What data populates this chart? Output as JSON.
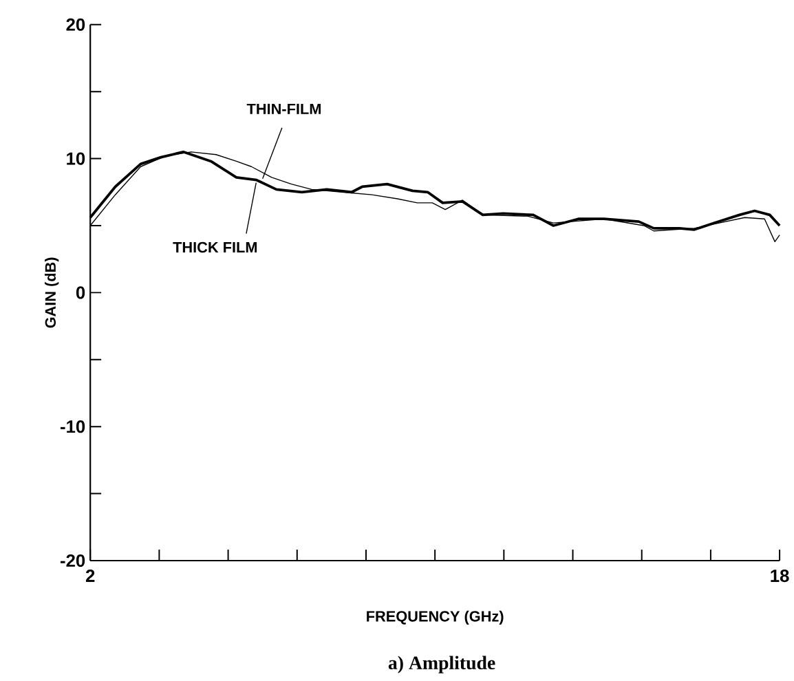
{
  "chart_data": {
    "type": "line",
    "xlabel": "FREQUENCY (GHz)",
    "ylabel": "GAIN (dB)",
    "annotations": [
      "a) Amplitude"
    ],
    "xlim": [
      2,
      18
    ],
    "ylim": [
      -20,
      20
    ],
    "xticks": [
      2,
      {
        "value": 3.6,
        "label": null
      },
      {
        "value": 5.2,
        "label": null
      },
      {
        "value": 6.8,
        "label": null
      },
      {
        "value": 8.4,
        "label": null
      },
      {
        "value": 10,
        "label": null
      },
      {
        "value": 11.6,
        "label": null
      },
      {
        "value": 13.2,
        "label": null
      },
      {
        "value": 14.8,
        "label": null
      },
      {
        "value": 16.4,
        "label": null
      },
      18
    ],
    "yticks": [
      -20,
      {
        "value": -15,
        "label": null
      },
      -10,
      {
        "value": -5,
        "label": null
      },
      0,
      {
        "value": 5,
        "label": null
      },
      10,
      {
        "value": 15,
        "label": null
      },
      20
    ],
    "grid": false,
    "legend": false,
    "marker": "none",
    "line_style": "solid",
    "series": [
      {
        "name": "THIN-FILM",
        "color": "#000000",
        "x": [
          2,
          2.58,
          3.17,
          3.75,
          4.34,
          4.92,
          5.39,
          5.74,
          6.21,
          6.67,
          7.14,
          7.84,
          8.54,
          9.13,
          9.59,
          9.94,
          10.24,
          10.64,
          11.11,
          12.16,
          12.75,
          13.92,
          14.85,
          15.08,
          16.02,
          16.6,
          17.19,
          17.65,
          17.89,
          18
        ],
        "values": [
          5.0,
          7.3,
          9.4,
          10.2,
          10.5,
          10.3,
          9.8,
          9.4,
          8.6,
          8.1,
          7.7,
          7.5,
          7.3,
          7.0,
          6.7,
          6.7,
          6.2,
          6.9,
          5.8,
          5.7,
          5.2,
          5.5,
          5.0,
          4.6,
          4.8,
          5.2,
          5.6,
          5.5,
          3.8,
          4.3
        ]
      },
      {
        "name": "THICK FILM",
        "color": "#000000",
        "x": [
          2,
          2.58,
          3.17,
          3.64,
          4.16,
          4.8,
          5.39,
          5.86,
          6.32,
          6.91,
          7.49,
          8.07,
          8.31,
          8.89,
          9.48,
          9.83,
          10.18,
          10.64,
          11.11,
          11.58,
          12.28,
          12.75,
          13.33,
          13.92,
          14.73,
          15.08,
          15.67,
          16.02,
          16.49,
          17.07,
          17.42,
          17.77,
          18
        ],
        "values": [
          5.6,
          7.9,
          9.6,
          10.1,
          10.5,
          9.8,
          8.6,
          8.4,
          7.7,
          7.5,
          7.7,
          7.5,
          7.9,
          8.1,
          7.6,
          7.5,
          6.7,
          6.8,
          5.8,
          5.9,
          5.8,
          5.0,
          5.5,
          5.5,
          5.3,
          4.8,
          4.8,
          4.7,
          5.2,
          5.8,
          6.1,
          5.8,
          5.0
        ]
      }
    ]
  }
}
